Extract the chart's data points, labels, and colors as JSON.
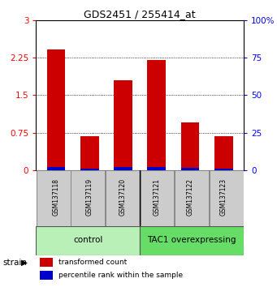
{
  "title": "GDS2451 / 255414_at",
  "samples": [
    "GSM137118",
    "GSM137119",
    "GSM137120",
    "GSM137121",
    "GSM137122",
    "GSM137123"
  ],
  "red_values": [
    2.42,
    0.68,
    1.79,
    2.21,
    0.95,
    0.68
  ],
  "blue_values": [
    0.06,
    0.03,
    0.07,
    0.06,
    0.04,
    0.03
  ],
  "ylim_left": [
    0,
    3
  ],
  "ylim_right": [
    0,
    100
  ],
  "yticks_left": [
    0,
    0.75,
    1.5,
    2.25,
    3
  ],
  "yticks_right": [
    0,
    25,
    50,
    75,
    100
  ],
  "groups": [
    {
      "label": "control",
      "color": "#b8f0b8",
      "color_dark": "#66cc66"
    },
    {
      "label": "TAC1 overexpressing",
      "color": "#66dd66",
      "color_dark": "#33aa33"
    }
  ],
  "red_color": "#cc0000",
  "blue_color": "#0000cc",
  "bar_width": 0.55,
  "sample_box_color": "#cccccc",
  "strain_label": "strain",
  "legend_red": "transformed count",
  "legend_blue": "percentile rank within the sample"
}
